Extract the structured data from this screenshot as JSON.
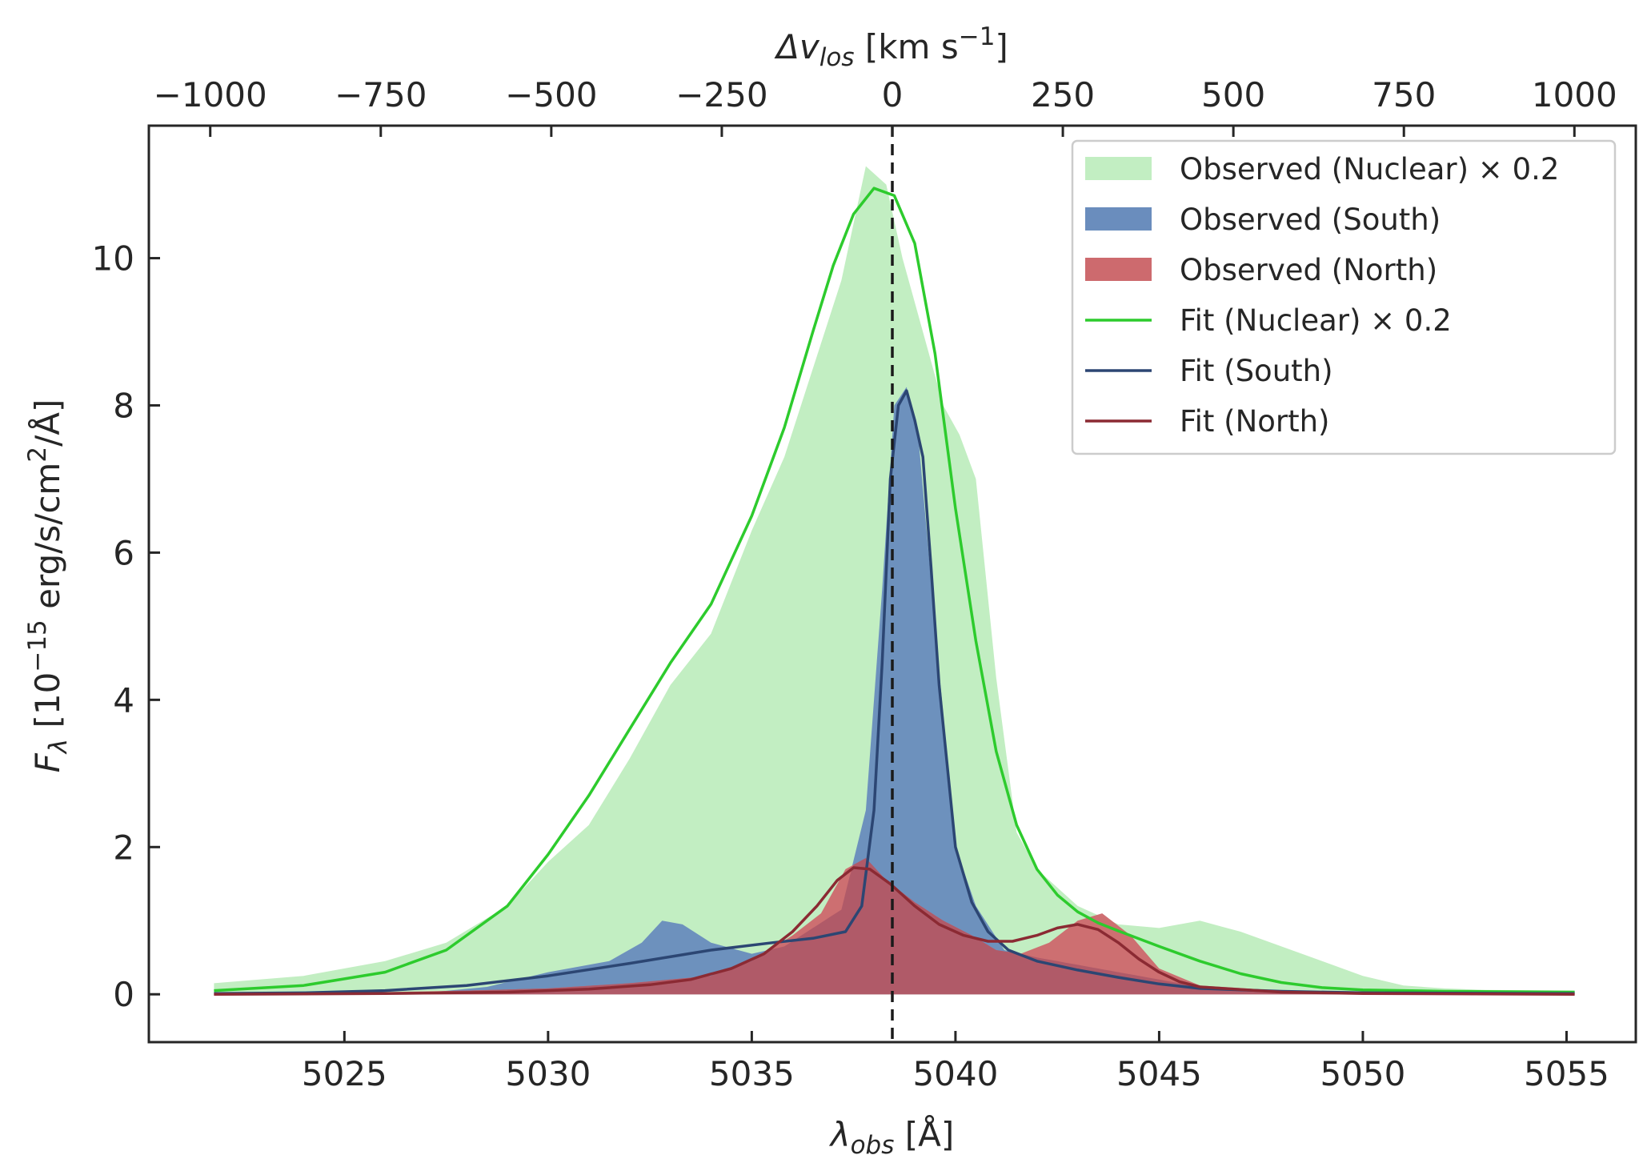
{
  "chart_data": {
    "type": "area",
    "xlabel": "λobs [Å]",
    "xlabel_parts": {
      "sym": "λ",
      "sub": "obs",
      "rest": " [Å]"
    },
    "ylabel_parts": {
      "sym": "F",
      "sub": "λ",
      "pre": " [10",
      "exp": "−15",
      "mid": " erg/s/cm",
      "exp2": "2",
      "post": "/Å]"
    },
    "top_xlabel_parts": {
      "sym": "Δv",
      "sub": "los",
      "pre": " [km s",
      "exp": "−1",
      "post": "]"
    },
    "xlim": [
      5020.2,
      5056.7
    ],
    "ylim": [
      -0.65,
      11.8
    ],
    "top_xlim": [
      -1090,
      1090
    ],
    "x_ticks": [
      5025,
      5030,
      5035,
      5040,
      5045,
      5050,
      5055
    ],
    "x_tick_labels": [
      "5025",
      "5030",
      "5035",
      "5040",
      "5045",
      "5050",
      "5055"
    ],
    "y_ticks": [
      0,
      2,
      4,
      6,
      8,
      10
    ],
    "y_tick_labels": [
      "0",
      "2",
      "4",
      "6",
      "8",
      "10"
    ],
    "top_ticks": [
      -1000,
      -750,
      -500,
      -250,
      0,
      250,
      500,
      750,
      1000
    ],
    "top_tick_labels": [
      "−1000",
      "−750",
      "−500",
      "−250",
      "0",
      "250",
      "500",
      "750",
      "1000"
    ],
    "vline_x": 5038.45,
    "grid": false,
    "legend_position": "top-right",
    "colors": {
      "nuclear_fill": "#c2eec2",
      "south_fill": "#6a8dbd",
      "north_fill": "#cd6a6e",
      "nuclear_line": "#2dcb2d",
      "south_line": "#2c4673",
      "north_line": "#8b2a33",
      "overlap": "#b05a68",
      "axes": "#262626"
    },
    "series": [
      {
        "name": "Observed (Nuclear) × 0.2",
        "kind": "fill",
        "x": [
          5021.8,
          5024,
          5026,
          5027.5,
          5029,
          5030,
          5031,
          5032,
          5033,
          5034,
          5035,
          5035.8,
          5036.5,
          5037.2,
          5037.8,
          5038.3,
          5038.7,
          5039.2,
          5039.7,
          5040.1,
          5040.5,
          5041,
          5041.5,
          5042,
          5043,
          5044,
          5045,
          5046,
          5047,
          5048,
          5049,
          5050,
          5051,
          5052,
          5053,
          5055.2
        ],
        "y": [
          0.15,
          0.25,
          0.45,
          0.7,
          1.2,
          1.8,
          2.3,
          3.2,
          4.2,
          4.9,
          6.3,
          7.3,
          8.5,
          9.7,
          11.25,
          11.0,
          10.0,
          9.0,
          8.0,
          7.6,
          7.0,
          4.3,
          2.2,
          1.7,
          1.2,
          0.95,
          0.9,
          1.0,
          0.85,
          0.65,
          0.45,
          0.25,
          0.12,
          0.08,
          0.06,
          0.05
        ]
      },
      {
        "name": "Observed (South)",
        "kind": "fill",
        "x": [
          5021.8,
          5027,
          5028.5,
          5030,
          5031.5,
          5032.3,
          5032.8,
          5033.3,
          5034,
          5035,
          5035.8,
          5036.5,
          5037.2,
          5037.8,
          5038.2,
          5038.5,
          5038.8,
          5039.1,
          5039.5,
          5040,
          5040.5,
          5041.2,
          5042,
          5043,
          5044,
          5045,
          5046,
          5047,
          5048,
          5050,
          5055.2
        ],
        "y": [
          0,
          0.02,
          0.1,
          0.3,
          0.45,
          0.7,
          1.0,
          0.95,
          0.7,
          0.55,
          0.65,
          0.9,
          1.15,
          2.5,
          5.5,
          8.0,
          8.25,
          7.5,
          5.0,
          2.0,
          1.2,
          0.6,
          0.5,
          0.4,
          0.3,
          0.2,
          0.1,
          0.05,
          0.03,
          0.02,
          0
        ]
      },
      {
        "name": "Observed (North)",
        "kind": "fill",
        "x": [
          5021.8,
          5025,
          5028,
          5030,
          5032,
          5033,
          5034,
          5035,
          5036,
          5036.7,
          5037.3,
          5037.8,
          5038.3,
          5039,
          5039.7,
          5040.4,
          5041,
          5041.6,
          5042.3,
          5043,
          5043.6,
          5044.3,
          5045,
          5046,
          5048,
          5050,
          5052,
          5055.2
        ],
        "y": [
          0,
          0.02,
          0.05,
          0.08,
          0.15,
          0.2,
          0.25,
          0.45,
          0.8,
          1.1,
          1.7,
          1.85,
          1.55,
          1.25,
          1.0,
          0.8,
          0.6,
          0.55,
          0.7,
          1.0,
          1.1,
          0.8,
          0.35,
          0.12,
          0.05,
          0.04,
          0.02,
          0
        ]
      },
      {
        "name": "Fit (Nuclear) × 0.2",
        "kind": "line",
        "x": [
          5021.8,
          5024,
          5026,
          5027.5,
          5029,
          5030,
          5031,
          5032,
          5033,
          5034,
          5035,
          5035.8,
          5036.5,
          5037,
          5037.5,
          5038,
          5038.5,
          5039,
          5039.5,
          5040,
          5040.5,
          5041,
          5041.5,
          5042,
          5042.5,
          5043,
          5043.5,
          5044,
          5045,
          5046,
          5047,
          5048,
          5049,
          5050,
          5052,
          5055.2
        ],
        "y": [
          0.05,
          0.12,
          0.3,
          0.6,
          1.2,
          1.9,
          2.7,
          3.6,
          4.5,
          5.3,
          6.5,
          7.7,
          9.0,
          9.9,
          10.6,
          10.95,
          10.85,
          10.2,
          8.7,
          6.6,
          4.8,
          3.3,
          2.3,
          1.7,
          1.35,
          1.12,
          0.97,
          0.86,
          0.65,
          0.45,
          0.28,
          0.16,
          0.09,
          0.06,
          0.04,
          0.03
        ]
      },
      {
        "name": "Fit (South)",
        "kind": "line",
        "x": [
          5021.8,
          5024,
          5026,
          5028,
          5030,
          5032,
          5034,
          5035.5,
          5036.5,
          5037.3,
          5037.7,
          5038,
          5038.2,
          5038.4,
          5038.6,
          5038.8,
          5039,
          5039.2,
          5039.4,
          5039.6,
          5040,
          5040.4,
          5040.8,
          5041.3,
          5042,
          5043,
          5044,
          5045,
          5046,
          5048,
          5050,
          5055.2
        ],
        "y": [
          0.01,
          0.02,
          0.05,
          0.12,
          0.25,
          0.42,
          0.6,
          0.7,
          0.76,
          0.85,
          1.2,
          2.5,
          4.5,
          7.0,
          8.0,
          8.2,
          7.8,
          7.3,
          5.8,
          4.2,
          2.0,
          1.25,
          0.85,
          0.6,
          0.45,
          0.33,
          0.23,
          0.14,
          0.08,
          0.04,
          0.02,
          0.01
        ]
      },
      {
        "name": "Fit (North)",
        "kind": "line",
        "x": [
          5021.8,
          5026,
          5029,
          5031,
          5032.5,
          5033.5,
          5034.5,
          5035.3,
          5036,
          5036.6,
          5037.1,
          5037.5,
          5037.9,
          5038.4,
          5039,
          5039.6,
          5040.2,
          5040.8,
          5041.4,
          5042,
          5042.5,
          5043,
          5043.5,
          5044,
          5044.5,
          5045,
          5045.5,
          5046,
          5048,
          5050,
          5055.2
        ],
        "y": [
          0,
          0.01,
          0.03,
          0.07,
          0.13,
          0.2,
          0.35,
          0.55,
          0.85,
          1.2,
          1.55,
          1.72,
          1.7,
          1.5,
          1.2,
          0.95,
          0.8,
          0.72,
          0.72,
          0.8,
          0.9,
          0.95,
          0.88,
          0.7,
          0.48,
          0.3,
          0.17,
          0.1,
          0.03,
          0.01,
          0
        ]
      }
    ]
  }
}
